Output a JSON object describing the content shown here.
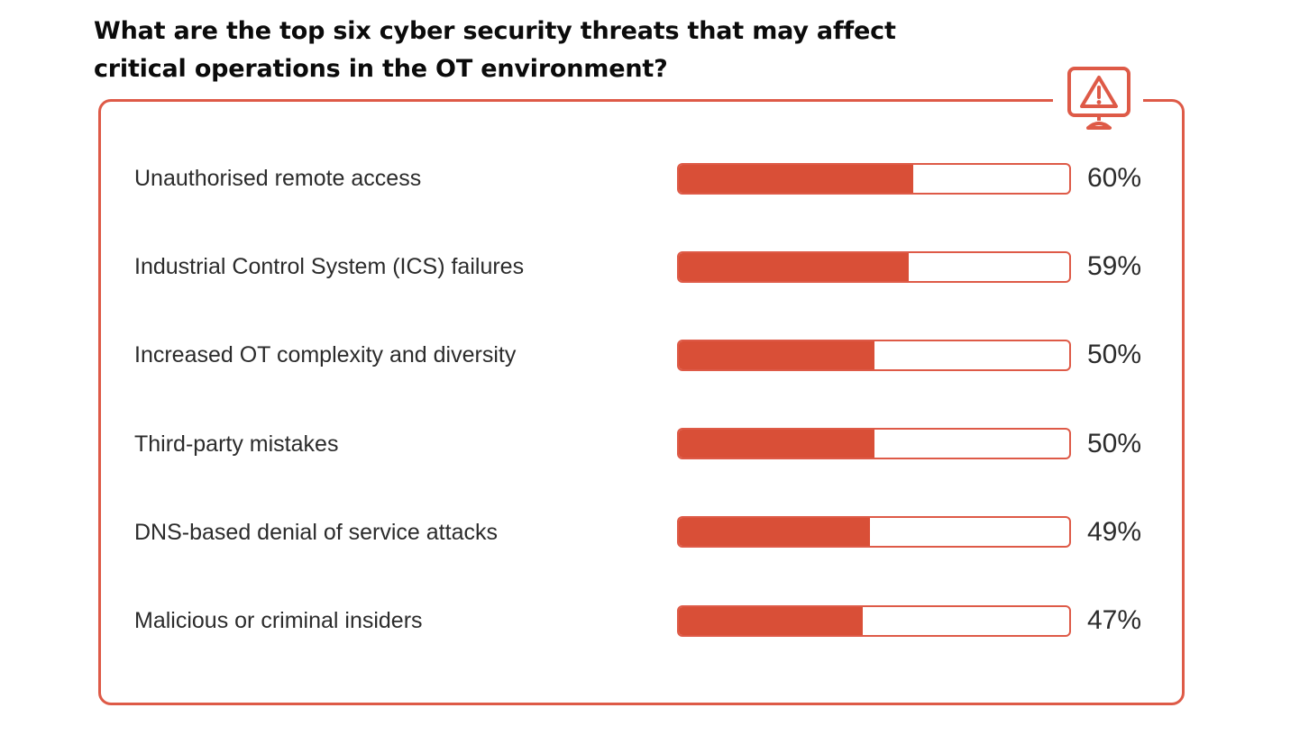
{
  "title": "What are the top six cyber security threats that may affect critical operations in the OT environment?",
  "icon": "warning-monitor-icon",
  "colors": {
    "accent": "#de5a47",
    "bar_fill": "#d94f37",
    "text": "#2b2b2b",
    "title": "#0b0b0b"
  },
  "chart_data": {
    "type": "bar",
    "orientation": "horizontal",
    "title": "What are the top six cyber security threats that may affect critical operations in the OT environment?",
    "categories": [
      "Unauthorised remote access",
      "Industrial Control System (ICS) failures",
      "Increased OT complexity and diversity",
      "Third-party mistakes",
      "DNS-based denial of service attacks",
      "Malicious or criminal insiders"
    ],
    "values": [
      60,
      59,
      50,
      50,
      49,
      47
    ],
    "value_labels": [
      "60%",
      "59%",
      "50%",
      "50%",
      "49%",
      "47%"
    ],
    "xlim": [
      0,
      100
    ],
    "grid": false,
    "legend": "none"
  }
}
